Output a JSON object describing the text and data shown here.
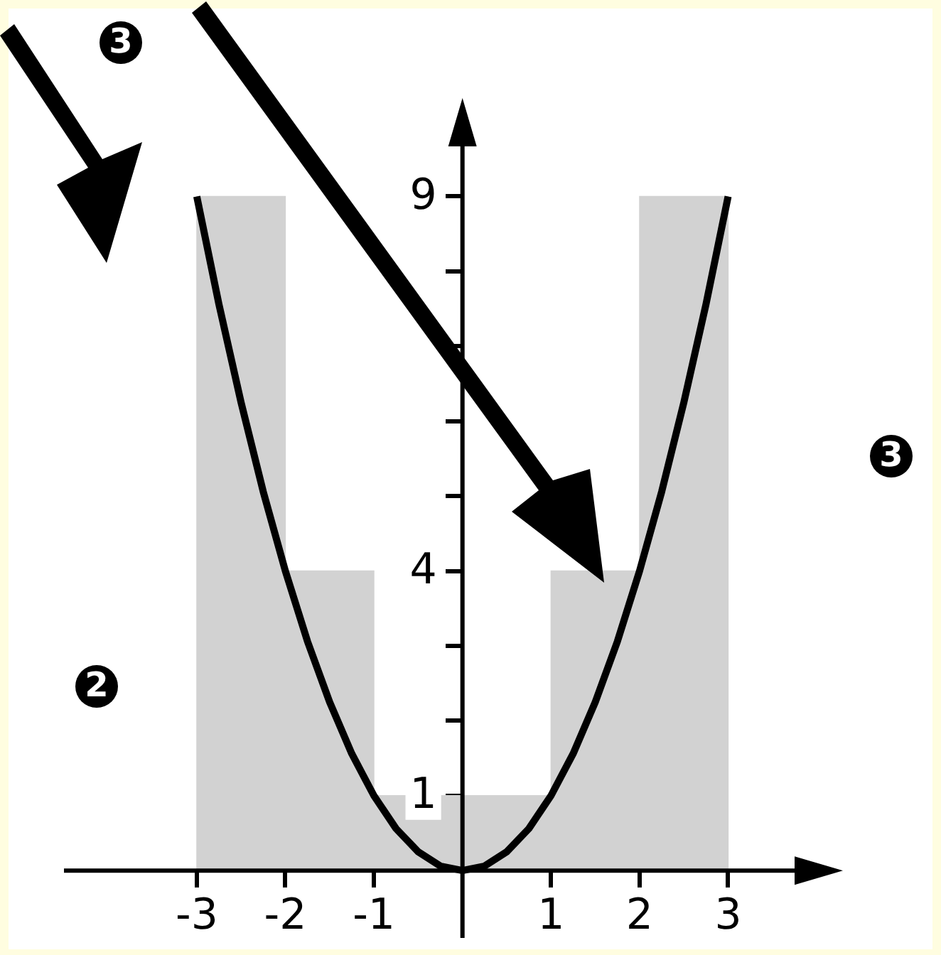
{
  "chart_data": {
    "type": "histogram",
    "bins": [
      -3,
      -2,
      -1,
      0,
      1,
      2,
      3
    ],
    "values": [
      9,
      4,
      1,
      1,
      4,
      9
    ],
    "color": "#d2d2d2",
    "series": [
      {
        "type": "line",
        "color": "#000000",
        "x": [
          -3,
          -2.75,
          -2.5,
          -2.25,
          -2,
          -1.75,
          -1.5,
          -1.25,
          -1,
          -0.75,
          -0.5,
          -0.25,
          0,
          0.25,
          0.5,
          0.75,
          1,
          1.25,
          1.5,
          1.75,
          2,
          2.25,
          2.5,
          2.75,
          3
        ],
        "values": [
          9,
          7.56,
          6.25,
          5.06,
          4,
          3.06,
          2.25,
          1.56,
          1,
          0.56,
          0.25,
          0.06,
          0,
          0.06,
          0.25,
          0.56,
          1,
          1.56,
          2.25,
          3.06,
          4,
          5.06,
          6.25,
          7.56,
          9
        ]
      }
    ],
    "xlim": [
      -4.5,
      4.2
    ],
    "ylim": [
      -0.9,
      10.2
    ],
    "xticks": [
      -3,
      -2,
      -1,
      1,
      2,
      3
    ],
    "yticks": [
      1,
      {
        "value": 2,
        "label": null
      },
      {
        "value": 3,
        "label": null
      },
      4,
      {
        "value": 5,
        "label": null
      },
      {
        "value": 6,
        "label": null
      },
      {
        "value": 7,
        "label": null
      },
      {
        "value": 8,
        "label": null
      },
      9
    ],
    "annotations": [
      "3",
      "2",
      "3"
    ],
    "grid": false,
    "legend": false,
    "marker": "none"
  }
}
